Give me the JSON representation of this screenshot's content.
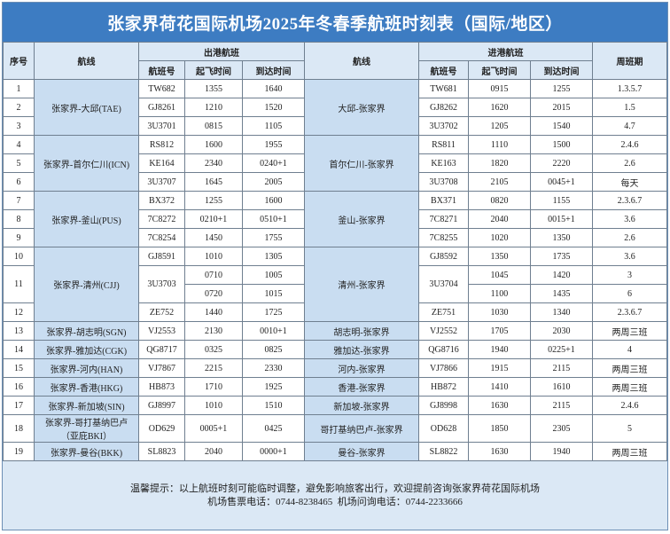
{
  "header": {
    "title": "张家界荷花国际机场2025年冬春季航班时刻表（国际/地区）"
  },
  "table": {
    "header_top": [
      "序号",
      "航线",
      "出港航班",
      "航线",
      "进港航班",
      "周班期"
    ],
    "header_sub": [
      "航班号",
      "起飞时间",
      "到达时间",
      "航班号",
      "起飞时间",
      "到达时间"
    ],
    "groups": [
      {
        "route_out": "张家界-大邱(TAE)",
        "route_in": "大邱-张家界",
        "rows": [
          [
            "1",
            "TW682",
            "1355",
            "1640",
            "TW681",
            "0915",
            "1255",
            "1.3.5.7"
          ],
          [
            "2",
            "GJ8261",
            "1210",
            "1520",
            "GJ8262",
            "1620",
            "2015",
            "1.5"
          ],
          [
            "3",
            "3U3701",
            "0815",
            "1105",
            "3U3702",
            "1205",
            "1540",
            "4.7"
          ]
        ]
      },
      {
        "route_out": "张家界-首尔仁川(ICN)",
        "route_in": "首尔仁川-张家界",
        "rows": [
          [
            "4",
            "RS812",
            "1600",
            "1955",
            "RS811",
            "1110",
            "1500",
            "2.4.6"
          ],
          [
            "5",
            "KE164",
            "2340",
            "0240+1",
            "KE163",
            "1820",
            "2220",
            "2.6"
          ],
          [
            "6",
            "3U3707",
            "1645",
            "2005",
            "3U3708",
            "2105",
            "0045+1",
            "每天"
          ]
        ]
      },
      {
        "route_out": "张家界-釜山(PUS)",
        "route_in": "釜山-张家界",
        "rows": [
          [
            "7",
            "BX372",
            "1255",
            "1600",
            "BX371",
            "0820",
            "1155",
            "2.3.6.7"
          ],
          [
            "8",
            "7C8272",
            "0210+1",
            "0510+1",
            "7C8271",
            "2040",
            "0015+1",
            "3.6"
          ],
          [
            "9",
            "7C8254",
            "1450",
            "1755",
            "7C8255",
            "1020",
            "1350",
            "2.6"
          ]
        ]
      },
      {
        "route_out": "张家界-清州(CJJ)",
        "route_in": "清州-张家界",
        "rows": [
          [
            "10",
            "GJ8591",
            "1010",
            "1305",
            "GJ8592",
            "1350",
            "1735",
            "3.6"
          ],
          {
            "no": "11",
            "out_flight": "3U3703",
            "in_flight": "3U3704",
            "sub": [
              [
                "0710",
                "1005",
                "1045",
                "1420",
                "3"
              ],
              [
                "0720",
                "1015",
                "1100",
                "1435",
                "6"
              ]
            ]
          },
          [
            "12",
            "ZE752",
            "1440",
            "1725",
            "ZE751",
            "1030",
            "1340",
            "2.3.6.7"
          ]
        ]
      },
      {
        "route_out": "张家界-胡志明(SGN)",
        "route_in": "胡志明-张家界",
        "rows": [
          [
            "13",
            "VJ2553",
            "2130",
            "0010+1",
            "VJ2552",
            "1705",
            "2030",
            "两周三班"
          ]
        ]
      },
      {
        "route_out": "张家界-雅加达(CGK)",
        "route_in": "雅加达-张家界",
        "rows": [
          [
            "14",
            "QG8717",
            "0325",
            "0825",
            "QG8716",
            "1940",
            "0225+1",
            "4"
          ]
        ]
      },
      {
        "route_out": "张家界-河内(HAN)",
        "route_in": "河内-张家界",
        "rows": [
          [
            "15",
            "VJ7867",
            "2215",
            "2330",
            "VJ7866",
            "1915",
            "2115",
            "两周三班"
          ]
        ]
      },
      {
        "route_out": "张家界-香港(HKG)",
        "route_in": "香港-张家界",
        "rows": [
          [
            "16",
            "HB873",
            "1710",
            "1925",
            "HB872",
            "1410",
            "1610",
            "两周三班"
          ]
        ]
      },
      {
        "route_out": "张家界-新加坡(SIN)",
        "route_in": "新加坡-张家界",
        "rows": [
          [
            "17",
            "GJ8997",
            "1010",
            "1510",
            "GJ8998",
            "1630",
            "2115",
            "2.4.6"
          ]
        ]
      },
      {
        "route_out": "张家界-哥打基纳巴卢（亚庇BKI）",
        "route_in": "哥打基纳巴卢-张家界",
        "rows": [
          [
            "18",
            "OD629",
            "0005+1",
            "0425",
            "OD628",
            "1850",
            "2305",
            "5"
          ]
        ]
      },
      {
        "route_out": "张家界-曼谷(BKK)",
        "route_in": "曼谷-张家界",
        "rows": [
          [
            "19",
            "SL8823",
            "2040",
            "0000+1",
            "SL8822",
            "1630",
            "1940",
            "两周三班"
          ]
        ]
      }
    ]
  },
  "footer": {
    "lines": [
      "温馨提示：以上航班时刻可能临时调整，避免影响旅客出行，欢迎提前咨询张家界荷花国际机场",
      "机场售票电话：0744-8238465  机场问询电话：0744-2233666"
    ]
  }
}
